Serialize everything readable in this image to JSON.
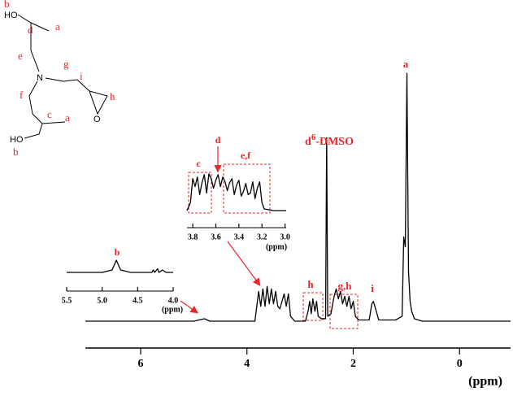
{
  "chart_data": [
    {
      "type": "line",
      "xlabel": "(ppm)",
      "color": "#000000",
      "x": [
        7.04,
        5.0,
        4.8,
        4.7,
        3.85,
        3.78,
        3.74,
        3.7,
        3.66,
        3.62,
        3.58,
        3.54,
        3.5,
        3.46,
        3.42,
        3.38,
        3.3,
        3.26,
        3.22,
        3.18,
        3.1,
        2.9,
        2.85,
        2.82,
        2.79,
        2.76,
        2.72,
        2.69,
        2.66,
        2.6,
        2.52,
        2.5,
        2.48,
        2.42,
        2.36,
        2.32,
        2.28,
        2.24,
        2.2,
        2.16,
        2.12,
        2.08,
        2.04,
        2.0,
        1.96,
        1.9,
        1.7,
        1.65,
        1.62,
        1.58,
        1.52,
        1.2,
        1.08,
        1.05,
        1.02,
        0.99,
        0.96,
        0.93,
        0.9,
        0.85,
        0.7,
        -0.96
      ],
      "values": [
        0,
        0,
        1,
        0,
        0,
        12,
        6,
        13,
        6,
        14,
        7,
        13,
        7,
        12,
        6,
        5,
        11,
        6,
        11,
        2,
        0,
        0,
        4,
        8,
        3,
        9,
        4,
        8,
        2,
        1,
        1,
        74,
        2,
        3,
        10,
        13,
        9,
        12,
        7,
        10,
        6,
        10,
        5,
        8,
        2,
        0.5,
        0.5,
        7,
        8,
        5,
        0.5,
        0.5,
        2,
        34,
        30,
        100,
        20,
        8,
        4,
        1,
        0,
        0
      ],
      "xlim": [
        7.04,
        -0.96
      ],
      "ylim": [
        0,
        100
      ],
      "xticks": [
        6,
        4,
        2,
        0
      ],
      "peak_labels": {
        "a": "a",
        "dmso": {
          "base": "d",
          "sup": "6",
          "rest": "-DMSO"
        },
        "h": "h",
        "gh": "g,h",
        "i": "i"
      }
    },
    {
      "type": "line",
      "xlabel": "(ppm)",
      "color": "#000000",
      "x": [
        5.5,
        5.0,
        4.86,
        4.8,
        4.74,
        4.6,
        4.3,
        4.28,
        4.26,
        4.22,
        4.2,
        4.15,
        4.1,
        4.0
      ],
      "values": [
        0,
        0,
        2,
        10,
        2,
        0,
        0,
        2,
        0,
        3,
        0,
        2,
        0,
        0
      ],
      "xlim": [
        5.5,
        4.0
      ],
      "ylim": [
        0,
        20
      ],
      "xticks": [
        5.5,
        {
          "value": 5,
          "label": "5.0"
        },
        4.5,
        {
          "value": 4,
          "label": "4.0"
        }
      ],
      "peak_labels": {
        "b": "b"
      }
    },
    {
      "type": "line",
      "xlabel": "(ppm)",
      "color": "#000000",
      "x": [
        3.85,
        3.82,
        3.8,
        3.78,
        3.76,
        3.74,
        3.72,
        3.7,
        3.68,
        3.66,
        3.64,
        3.62,
        3.6,
        3.58,
        3.56,
        3.54,
        3.52,
        3.5,
        3.48,
        3.46,
        3.44,
        3.42,
        3.4,
        3.38,
        3.36,
        3.34,
        3.32,
        3.3,
        3.28,
        3.26,
        3.24,
        3.22,
        3.2,
        3.18,
        3.1,
        2.99
      ],
      "values": [
        0,
        10,
        40,
        30,
        42,
        20,
        35,
        45,
        22,
        46,
        40,
        28,
        38,
        45,
        30,
        42,
        36,
        25,
        35,
        40,
        20,
        32,
        38,
        18,
        24,
        34,
        20,
        22,
        36,
        15,
        28,
        36,
        10,
        2,
        0,
        0
      ],
      "xlim": [
        3.85,
        2.99
      ],
      "ylim": [
        0,
        60
      ],
      "xticks": [
        3.8,
        3.6,
        3.4,
        3.2,
        {
          "value": 3,
          "label": "3.0"
        }
      ],
      "peak_labels": {
        "c": "c",
        "d": "d",
        "ef": "e,f"
      }
    }
  ],
  "structure": {
    "atoms": {
      "ho1": "HO",
      "b1": "b",
      "d": "d",
      "a1": "a",
      "e": "e",
      "n": "N",
      "g": "g",
      "i": "i",
      "h": "h",
      "o": "O",
      "f": "f",
      "c": "c",
      "a2": "a",
      "ho2": "HO",
      "b2": "b"
    }
  }
}
